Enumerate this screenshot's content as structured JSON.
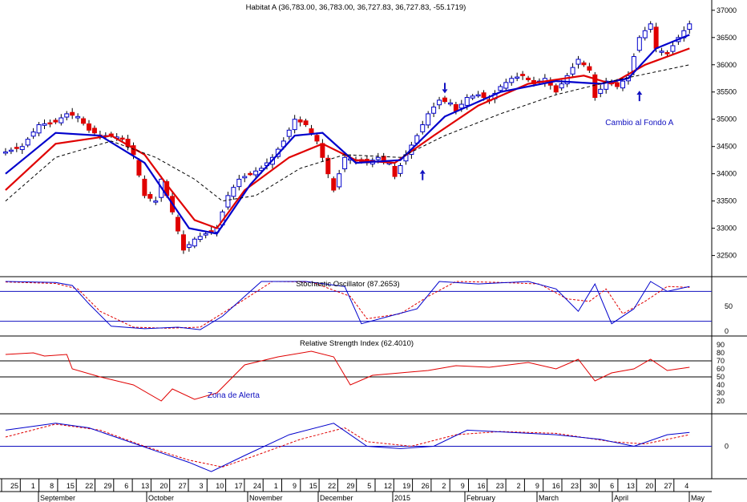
{
  "chart_data": [
    {
      "type": "candlestick",
      "title": "Habitat A (36,783.00, 36,783.00, 36,727.83, 36,727.83, -55.1719)",
      "ylim": [
        32200,
        37100
      ],
      "y_ticks": [
        "37000",
        "36500",
        "36000",
        "35500",
        "35000",
        "34500",
        "34000",
        "33500",
        "33000",
        "32500"
      ],
      "close_points": [
        [
          1,
          34400
        ],
        [
          4,
          34500
        ],
        [
          7,
          34900
        ],
        [
          10,
          34950
        ],
        [
          12,
          35100
        ],
        [
          14,
          35050
        ],
        [
          16,
          34800
        ],
        [
          18,
          34700
        ],
        [
          20,
          34700
        ],
        [
          22,
          34650
        ],
        [
          24,
          34350
        ],
        [
          26,
          33600
        ],
        [
          28,
          33500
        ],
        [
          29,
          33900
        ],
        [
          31,
          33300
        ],
        [
          33,
          32600
        ],
        [
          35,
          32800
        ],
        [
          37,
          32900
        ],
        [
          39,
          33000
        ],
        [
          41,
          33600
        ],
        [
          43,
          33900
        ],
        [
          45,
          34000
        ],
        [
          47,
          34100
        ],
        [
          49,
          34300
        ],
        [
          51,
          34600
        ],
        [
          53,
          35000
        ],
        [
          55,
          34900
        ],
        [
          57,
          34600
        ],
        [
          59,
          34000
        ],
        [
          60,
          33700
        ],
        [
          62,
          34300
        ],
        [
          64,
          34250
        ],
        [
          66,
          34200
        ],
        [
          68,
          34300
        ],
        [
          70,
          34200
        ],
        [
          71,
          33950
        ],
        [
          73,
          34350
        ],
        [
          75,
          34700
        ],
        [
          77,
          35100
        ],
        [
          79,
          35350
        ],
        [
          81,
          35300
        ],
        [
          82,
          35150
        ],
        [
          84,
          35400
        ],
        [
          86,
          35450
        ],
        [
          88,
          35350
        ],
        [
          90,
          35600
        ],
        [
          92,
          35750
        ],
        [
          94,
          35800
        ],
        [
          96,
          35650
        ],
        [
          98,
          35750
        ],
        [
          100,
          35500
        ],
        [
          102,
          35800
        ],
        [
          104,
          36100
        ],
        [
          106,
          35900
        ],
        [
          107,
          35400
        ],
        [
          109,
          35700
        ],
        [
          111,
          35600
        ],
        [
          113,
          35800
        ],
        [
          115,
          36500
        ],
        [
          117,
          36750
        ],
        [
          118,
          36300
        ],
        [
          120,
          36200
        ],
        [
          122,
          36500
        ],
        [
          124,
          36750
        ]
      ],
      "moving_averages": [
        {
          "values": [
            [
              1,
              33700
            ],
            [
              10,
              34550
            ],
            [
              20,
              34700
            ],
            [
              26,
              34350
            ],
            [
              30,
              33800
            ],
            [
              35,
              33150
            ],
            [
              39,
              33000
            ],
            [
              44,
              33700
            ],
            [
              52,
              34300
            ],
            [
              58,
              34550
            ],
            [
              64,
              34250
            ],
            [
              71,
              34200
            ],
            [
              78,
              34700
            ],
            [
              86,
              35250
            ],
            [
              95,
              35650
            ],
            [
              105,
              35800
            ],
            [
              110,
              35650
            ],
            [
              116,
              36000
            ],
            [
              124,
              36300
            ]
          ]
        },
        {
          "values": [
            [
              1,
              34000
            ],
            [
              10,
              34750
            ],
            [
              18,
              34700
            ],
            [
              26,
              34200
            ],
            [
              30,
              33600
            ],
            [
              34,
              33000
            ],
            [
              39,
              32900
            ],
            [
              45,
              33800
            ],
            [
              53,
              34700
            ],
            [
              58,
              34750
            ],
            [
              64,
              34200
            ],
            [
              72,
              34250
            ],
            [
              80,
              35050
            ],
            [
              90,
              35500
            ],
            [
              100,
              35700
            ],
            [
              108,
              35650
            ],
            [
              113,
              35750
            ],
            [
              118,
              36300
            ],
            [
              124,
              36550
            ]
          ]
        },
        {
          "values": [
            [
              1,
              33500
            ],
            [
              10,
              34300
            ],
            [
              20,
              34600
            ],
            [
              28,
              34300
            ],
            [
              35,
              33900
            ],
            [
              40,
              33500
            ],
            [
              46,
              33600
            ],
            [
              54,
              34100
            ],
            [
              62,
              34350
            ],
            [
              72,
              34300
            ],
            [
              80,
              34700
            ],
            [
              90,
              35100
            ],
            [
              100,
              35450
            ],
            [
              110,
              35700
            ],
            [
              124,
              36000
            ]
          ]
        }
      ],
      "annotations": [
        {
          "text": "Cambio al Fondo A",
          "x": 115,
          "y": 34950
        },
        {
          "arrow": "down",
          "x": 80,
          "y": 35550
        },
        {
          "arrow": "up",
          "x": 76,
          "y": 34000
        },
        {
          "arrow": "up",
          "x": 115,
          "y": 35450
        }
      ]
    },
    {
      "type": "line",
      "title": "Stochastic Oscillator (87.2653)",
      "ylim": [
        0,
        100
      ],
      "y_ticks": [
        "50",
        "0"
      ],
      "reference_lines": [
        80,
        20
      ],
      "k_values": [
        [
          1,
          100
        ],
        [
          10,
          98
        ],
        [
          13,
          92
        ],
        [
          16,
          55
        ],
        [
          20,
          10
        ],
        [
          26,
          5
        ],
        [
          32,
          8
        ],
        [
          36,
          3
        ],
        [
          40,
          30
        ],
        [
          47,
          100
        ],
        [
          55,
          100
        ],
        [
          62,
          90
        ],
        [
          65,
          15
        ],
        [
          70,
          30
        ],
        [
          75,
          45
        ],
        [
          79,
          100
        ],
        [
          86,
          95
        ],
        [
          95,
          100
        ],
        [
          100,
          85
        ],
        [
          104,
          40
        ],
        [
          107,
          95
        ],
        [
          110,
          15
        ],
        [
          114,
          45
        ],
        [
          117,
          100
        ],
        [
          120,
          80
        ],
        [
          124,
          90
        ]
      ],
      "d_values": [
        [
          1,
          99
        ],
        [
          10,
          96
        ],
        [
          14,
          85
        ],
        [
          18,
          40
        ],
        [
          24,
          8
        ],
        [
          30,
          6
        ],
        [
          36,
          8
        ],
        [
          42,
          50
        ],
        [
          49,
          100
        ],
        [
          56,
          99
        ],
        [
          63,
          70
        ],
        [
          66,
          25
        ],
        [
          72,
          35
        ],
        [
          77,
          70
        ],
        [
          82,
          100
        ],
        [
          90,
          98
        ],
        [
          97,
          95
        ],
        [
          102,
          65
        ],
        [
          106,
          60
        ],
        [
          109,
          85
        ],
        [
          112,
          35
        ],
        [
          116,
          60
        ],
        [
          120,
          90
        ],
        [
          124,
          88
        ]
      ]
    },
    {
      "type": "line",
      "title": "Relative Strength Index (62.4010)",
      "ylim": [
        10,
        95
      ],
      "y_ticks": [
        "90",
        "80",
        "70",
        "60",
        "50",
        "40",
        "30",
        "20"
      ],
      "reference_lines": [
        70,
        50
      ],
      "values": [
        [
          1,
          78
        ],
        [
          6,
          80
        ],
        [
          8,
          76
        ],
        [
          12,
          78
        ],
        [
          13,
          60
        ],
        [
          18,
          50
        ],
        [
          24,
          40
        ],
        [
          29,
          20
        ],
        [
          31,
          35
        ],
        [
          35,
          22
        ],
        [
          39,
          30
        ],
        [
          44,
          65
        ],
        [
          50,
          75
        ],
        [
          56,
          82
        ],
        [
          60,
          75
        ],
        [
          63,
          40
        ],
        [
          67,
          52
        ],
        [
          72,
          55
        ],
        [
          77,
          58
        ],
        [
          82,
          64
        ],
        [
          88,
          62
        ],
        [
          95,
          68
        ],
        [
          100,
          60
        ],
        [
          104,
          72
        ],
        [
          107,
          45
        ],
        [
          110,
          55
        ],
        [
          114,
          60
        ],
        [
          117,
          72
        ],
        [
          120,
          58
        ],
        [
          124,
          62
        ]
      ],
      "annotations": [
        {
          "text": "Zona de Alerta",
          "x": 42,
          "y": 24
        }
      ]
    },
    {
      "type": "line",
      "title": "",
      "ylim": [
        -60,
        60
      ],
      "y_ticks": [
        "0"
      ],
      "reference_lines": [
        0
      ],
      "values": [
        [
          1,
          35
        ],
        [
          10,
          50
        ],
        [
          16,
          40
        ],
        [
          22,
          15
        ],
        [
          28,
          -10
        ],
        [
          34,
          -35
        ],
        [
          38,
          -55
        ],
        [
          44,
          -20
        ],
        [
          52,
          25
        ],
        [
          60,
          50
        ],
        [
          66,
          0
        ],
        [
          72,
          -5
        ],
        [
          78,
          0
        ],
        [
          84,
          35
        ],
        [
          92,
          30
        ],
        [
          100,
          25
        ],
        [
          108,
          15
        ],
        [
          114,
          0
        ],
        [
          120,
          25
        ],
        [
          124,
          30
        ]
      ],
      "signal": [
        [
          1,
          20
        ],
        [
          10,
          48
        ],
        [
          18,
          35
        ],
        [
          26,
          0
        ],
        [
          34,
          -30
        ],
        [
          40,
          -45
        ],
        [
          46,
          -20
        ],
        [
          54,
          15
        ],
        [
          62,
          40
        ],
        [
          66,
          10
        ],
        [
          74,
          0
        ],
        [
          82,
          25
        ],
        [
          90,
          32
        ],
        [
          100,
          28
        ],
        [
          110,
          10
        ],
        [
          116,
          5
        ],
        [
          124,
          25
        ]
      ]
    }
  ],
  "x_axis": {
    "day_labels": [
      "25",
      "1",
      "8",
      "15",
      "22",
      "29",
      "6",
      "13",
      "20",
      "27",
      "3",
      "10",
      "17",
      "24",
      "1",
      "9",
      "15",
      "22",
      "29",
      "5",
      "12",
      "19",
      "26",
      "2",
      "9",
      "16",
      "23",
      "2",
      "9",
      "16",
      "23",
      "30",
      "6",
      "13",
      "20",
      "27",
      "4"
    ],
    "month_labels": [
      "September",
      "October",
      "November",
      "December",
      "2015",
      "February",
      "March",
      "April",
      "May"
    ]
  }
}
